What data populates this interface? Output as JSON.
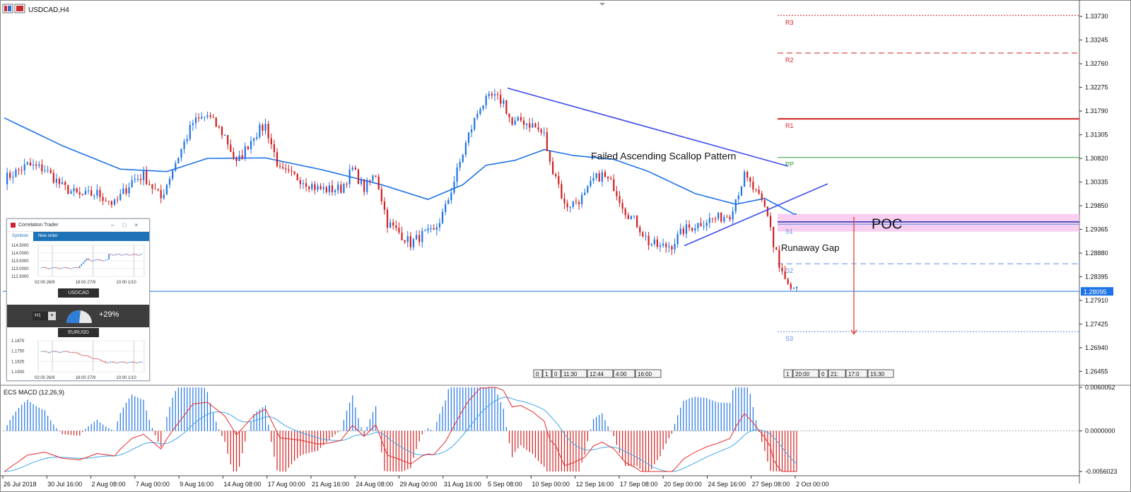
{
  "chart_title": "USDCAD,H4",
  "colors": {
    "bull": "#1e73e8",
    "bear": "#d21e1e",
    "ma": "#1e73e8",
    "trendline": "#3b4cf0",
    "pivot_r": "#d42020",
    "pivot_pp": "#2a9d3a",
    "pivot_s": "#5b8fe0",
    "poc_zone": "#f7c6ef",
    "macd_signal": "#e82a2a",
    "macd_line": "#3ea7e8"
  },
  "price_axis": {
    "ticks": [
      "1.33730",
      "1.33245",
      "1.32760",
      "1.32275",
      "1.31790",
      "1.31305",
      "1.30820",
      "1.30335",
      "1.29850",
      "1.29365",
      "1.28880",
      "1.28395",
      "1.27910",
      "1.27425",
      "1.26940",
      "1.26455"
    ],
    "current_price": "1.28095"
  },
  "time_axis": [
    "26 Jul 2018",
    "30 Jul 16:00",
    "2 Aug 08:00",
    "7 Aug 00:00",
    "9 Aug 16:00",
    "14 Aug 08:00",
    "17 Aug 00:00",
    "21 Aug 16:00",
    "24 Aug 08:00",
    "29 Aug 00:00",
    "31 Aug 16:00",
    "5 Sep 08:00",
    "10 Sep 00:00",
    "12 Sep 16:00",
    "17 Sep 08:00",
    "20 Sep 00:00",
    "24 Sep 16:00",
    "27 Sep 08:00",
    "2 Oct 00:00"
  ],
  "pivots": [
    {
      "label": "R3",
      "value": 1.3375
    },
    {
      "label": "R2",
      "value": 1.3298
    },
    {
      "label": "R1",
      "value": 1.3163
    },
    {
      "label": "PP",
      "value": 1.3084
    },
    {
      "label": "S1",
      "value": 1.2947
    },
    {
      "label": "S2",
      "value": 1.2866
    },
    {
      "label": "S3",
      "value": 1.2727
    }
  ],
  "annotations": {
    "scallop": "Failed Ascending Scallop Pattern",
    "gap": "Runaway Gap",
    "poc": "POC"
  },
  "session_boxes_left": [
    "0",
    "1",
    "0",
    "11:30",
    "12:44",
    "4:00",
    "16:00"
  ],
  "session_boxes_right": [
    "1",
    "20:00",
    "0",
    "21:",
    "17:0",
    "15:30"
  ],
  "macd": {
    "label": "ECS MACD (12,26,9)",
    "ticks": [
      "0.0060052",
      "0.0000000",
      "-0.0056023"
    ]
  },
  "correlation_trader": {
    "title": "Correlation Trader",
    "tabs": [
      "Symbols",
      "New order"
    ],
    "top_symbol": "USDCAD",
    "bottom_symbol": "EURUSD",
    "timeframe": "H1",
    "correlation": "+29%",
    "top_chart": {
      "yticks": [
        "114.5000",
        "114.0000",
        "113.5000",
        "113.0000",
        "112.5000"
      ],
      "xticks": [
        "02:00 26/9",
        "18:00 27/9",
        "10:00 1/10"
      ]
    },
    "bottom_chart": {
      "yticks": [
        "1.1875",
        "1.1750",
        "1.1625",
        "1.1500"
      ],
      "xticks": [
        "02:00 26/9",
        "18:00 27/9",
        "10:00 1/10"
      ]
    }
  },
  "chart_data": {
    "type": "candlestick",
    "title": "USDCAD,H4",
    "ylim": [
      1.262,
      1.3395
    ],
    "anchors": [
      [
        0,
        1.304
      ],
      [
        8,
        1.3068
      ],
      [
        14,
        1.306
      ],
      [
        20,
        1.3024
      ],
      [
        26,
        1.3005
      ],
      [
        32,
        1.301
      ],
      [
        38,
        1.2988
      ],
      [
        44,
        1.3036
      ],
      [
        48,
        1.3047
      ],
      [
        54,
        1.3
      ],
      [
        58,
        1.306
      ],
      [
        65,
        1.3155
      ],
      [
        70,
        1.317
      ],
      [
        76,
        1.3128
      ],
      [
        80,
        1.307
      ],
      [
        86,
        1.313
      ],
      [
        90,
        1.315
      ],
      [
        95,
        1.3055
      ],
      [
        102,
        1.304
      ],
      [
        108,
        1.302
      ],
      [
        112,
        1.3018
      ],
      [
        116,
        1.302
      ],
      [
        120,
        1.306
      ],
      [
        124,
        1.302
      ],
      [
        128,
        1.305
      ],
      [
        132,
        1.295
      ],
      [
        136,
        1.293
      ],
      [
        140,
        1.2908
      ],
      [
        144,
        1.2925
      ],
      [
        148,
        1.293
      ],
      [
        152,
        1.298
      ],
      [
        156,
        1.3055
      ],
      [
        160,
        1.313
      ],
      [
        164,
        1.319
      ],
      [
        168,
        1.3208
      ],
      [
        172,
        1.3198
      ],
      [
        175,
        1.315
      ],
      [
        178,
        1.316
      ],
      [
        182,
        1.315
      ],
      [
        186,
        1.313
      ],
      [
        188,
        1.307
      ],
      [
        190,
        1.305
      ],
      [
        193,
        1.2985
      ],
      [
        196,
        1.299
      ],
      [
        200,
        1.3005
      ],
      [
        203,
        1.3038
      ],
      [
        206,
        1.3048
      ],
      [
        210,
        1.3025
      ],
      [
        214,
        1.2975
      ],
      [
        218,
        1.2948
      ],
      [
        222,
        1.291
      ],
      [
        226,
        1.29
      ],
      [
        230,
        1.2905
      ],
      [
        234,
        1.2935
      ],
      [
        238,
        1.2945
      ],
      [
        242,
        1.2955
      ],
      [
        246,
        1.296
      ],
      [
        250,
        1.2968
      ],
      [
        252,
        1.3
      ],
      [
        255,
        1.3045
      ],
      [
        258,
        1.302
      ],
      [
        260,
        1.3
      ],
      [
        262,
        1.298
      ],
      [
        264,
        1.2945
      ],
      [
        265,
        1.2902
      ],
      [
        267,
        1.2868
      ],
      [
        269,
        1.283
      ],
      [
        271,
        1.2812
      ],
      [
        273,
        1.281
      ]
    ],
    "ma_anchors": [
      [
        0,
        1.3165
      ],
      [
        20,
        1.3108
      ],
      [
        40,
        1.306
      ],
      [
        56,
        1.3055
      ],
      [
        70,
        1.3082
      ],
      [
        90,
        1.3083
      ],
      [
        110,
        1.3058
      ],
      [
        130,
        1.3028
      ],
      [
        146,
        1.2998
      ],
      [
        158,
        1.3028
      ],
      [
        166,
        1.3068
      ],
      [
        176,
        1.3078
      ],
      [
        186,
        1.31
      ],
      [
        196,
        1.3088
      ],
      [
        210,
        1.308
      ],
      [
        222,
        1.3055
      ],
      [
        238,
        1.301
      ],
      [
        252,
        1.2988
      ],
      [
        262,
        1.3
      ],
      [
        272,
        1.2968
      ]
    ]
  }
}
